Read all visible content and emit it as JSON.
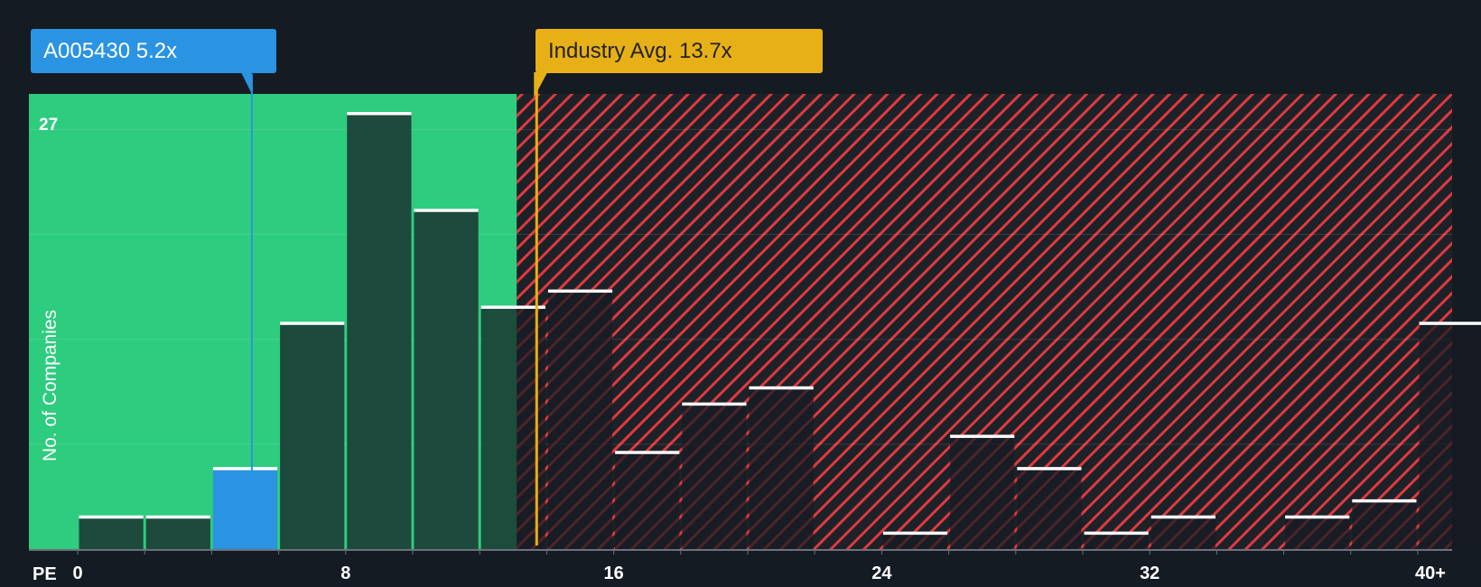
{
  "chart_data": {
    "type": "bar",
    "title": "",
    "xlabel": "PE",
    "ylabel": "No. of Companies",
    "x_ticks": [
      "0",
      "8",
      "16",
      "24",
      "32",
      "40+"
    ],
    "y_max_label": "27",
    "bin_width": 2,
    "xlim": [
      0,
      41
    ],
    "ylim": [
      0,
      27.5
    ],
    "bins": [
      {
        "start": 0,
        "count": 2
      },
      {
        "start": 2,
        "count": 2
      },
      {
        "start": 4,
        "count": 5,
        "highlight": true
      },
      {
        "start": 6,
        "count": 14
      },
      {
        "start": 8,
        "count": 27
      },
      {
        "start": 10,
        "count": 21
      },
      {
        "start": 12,
        "count": 15
      },
      {
        "start": 14,
        "count": 16
      },
      {
        "start": 16,
        "count": 6
      },
      {
        "start": 18,
        "count": 9
      },
      {
        "start": 20,
        "count": 10
      },
      {
        "start": 22,
        "count": 0
      },
      {
        "start": 24,
        "count": 1
      },
      {
        "start": 26,
        "count": 7
      },
      {
        "start": 28,
        "count": 5
      },
      {
        "start": 30,
        "count": 1
      },
      {
        "start": 32,
        "count": 2
      },
      {
        "start": 34,
        "count": 0
      },
      {
        "start": 36,
        "count": 2
      },
      {
        "start": 38,
        "count": 3
      },
      {
        "start": 40,
        "count": 14
      }
    ],
    "company": {
      "label": "A005430 5.2x",
      "value": 5.2
    },
    "industry": {
      "label": "Industry Avg. 13.7x",
      "value": 13.7
    },
    "colors": {
      "background": "#151b23",
      "fair_zone": "#2ecc7e",
      "expensive_zone": "#e0393f",
      "bar": "#1d4a3c",
      "highlight": "#2a93e2",
      "company_line": "#2a93e2",
      "industry_line": "#e8b017"
    }
  }
}
